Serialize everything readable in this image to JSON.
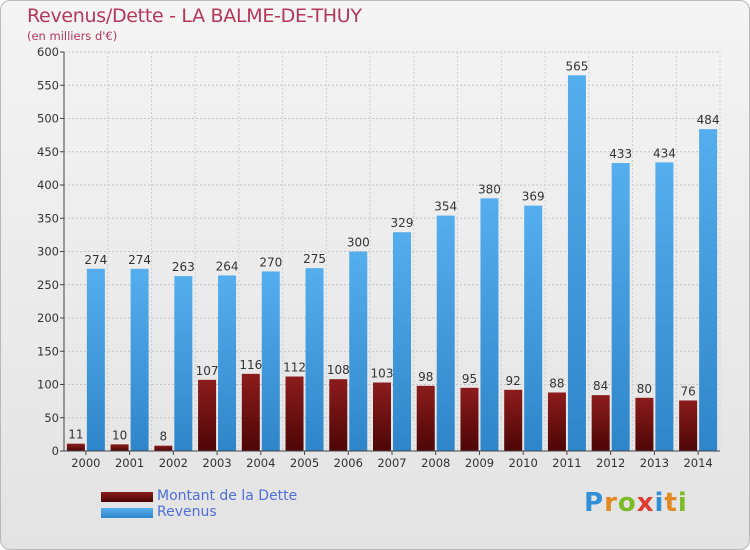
{
  "chart_data": {
    "type": "bar",
    "title": "Revenus/Dette - LA BALME-DE-THUY",
    "subtitle": "(en milliers d'€)",
    "categories": [
      "2000",
      "2001",
      "2002",
      "2003",
      "2004",
      "2005",
      "2006",
      "2007",
      "2008",
      "2009",
      "2010",
      "2011",
      "2012",
      "2013",
      "2014"
    ],
    "series": [
      {
        "name": "Montant de la Dette",
        "color": "#7a1616",
        "values": [
          11,
          10,
          8,
          107,
          116,
          112,
          108,
          103,
          98,
          95,
          92,
          88,
          84,
          80,
          76
        ]
      },
      {
        "name": "Revenus",
        "color": "#4ea6e8",
        "values": [
          274,
          274,
          263,
          264,
          270,
          275,
          300,
          329,
          354,
          380,
          369,
          565,
          433,
          434,
          484
        ]
      }
    ],
    "ylim": [
      0,
      600
    ],
    "yticks": [
      0,
      50,
      100,
      150,
      200,
      250,
      300,
      350,
      400,
      450,
      500,
      550,
      600
    ],
    "grid": true,
    "legend_position": "bottom-left"
  },
  "logo": {
    "text": "Proxiti"
  }
}
